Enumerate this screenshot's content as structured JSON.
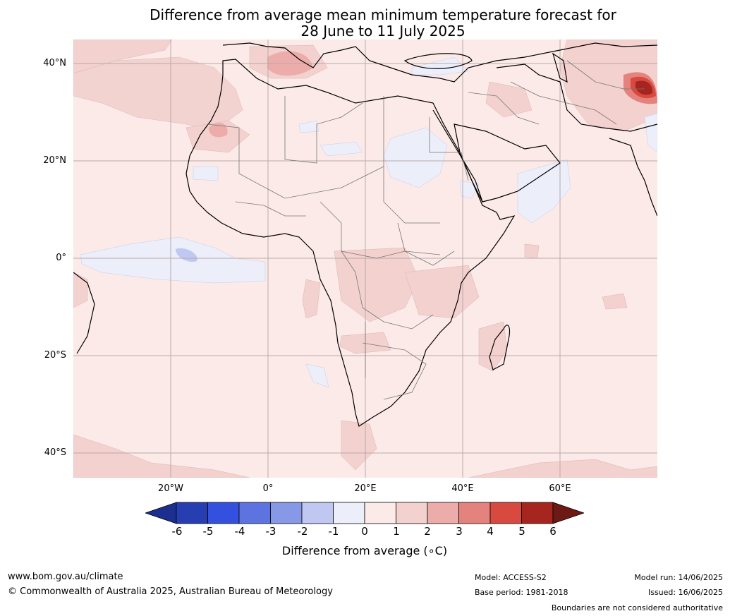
{
  "title": {
    "line1": "Difference from average mean minimum temperature forecast for",
    "line2": "28 June to 11 July 2025"
  },
  "map": {
    "latitude_labels": [
      "40°N",
      "20°N",
      "0°",
      "20°S",
      "40°S"
    ],
    "longitude_labels": [
      "20°W",
      "0°",
      "20°E",
      "40°E",
      "60°E"
    ]
  },
  "colorbar": {
    "ticks": [
      "-6",
      "-5",
      "-4",
      "-3",
      "-2",
      "-1",
      "0",
      "1",
      "2",
      "3",
      "4",
      "5",
      "6"
    ],
    "colors": [
      "#1c2f8f",
      "#273eb3",
      "#3351de",
      "#5c73e0",
      "#8798e6",
      "#c0c8f1",
      "#eceffa",
      "#fbeae8",
      "#f3d1ce",
      "#ecadaa",
      "#e4827d",
      "#d84a3f",
      "#a6251e",
      "#6d1a14"
    ],
    "label": "Difference from average (∘C)"
  },
  "footer": {
    "website": "www.bom.gov.au/climate",
    "copyright": "© Commonwealth of Australia 2025, Australian Bureau of Meteorology",
    "model": "Model: ACCESS-S2",
    "base_period": "Base period: 1981-2018",
    "model_run": "Model run: 14/06/2025",
    "issued": "Issued: 16/06/2025",
    "disclaimer": "Boundaries are not considered authoritative"
  }
}
